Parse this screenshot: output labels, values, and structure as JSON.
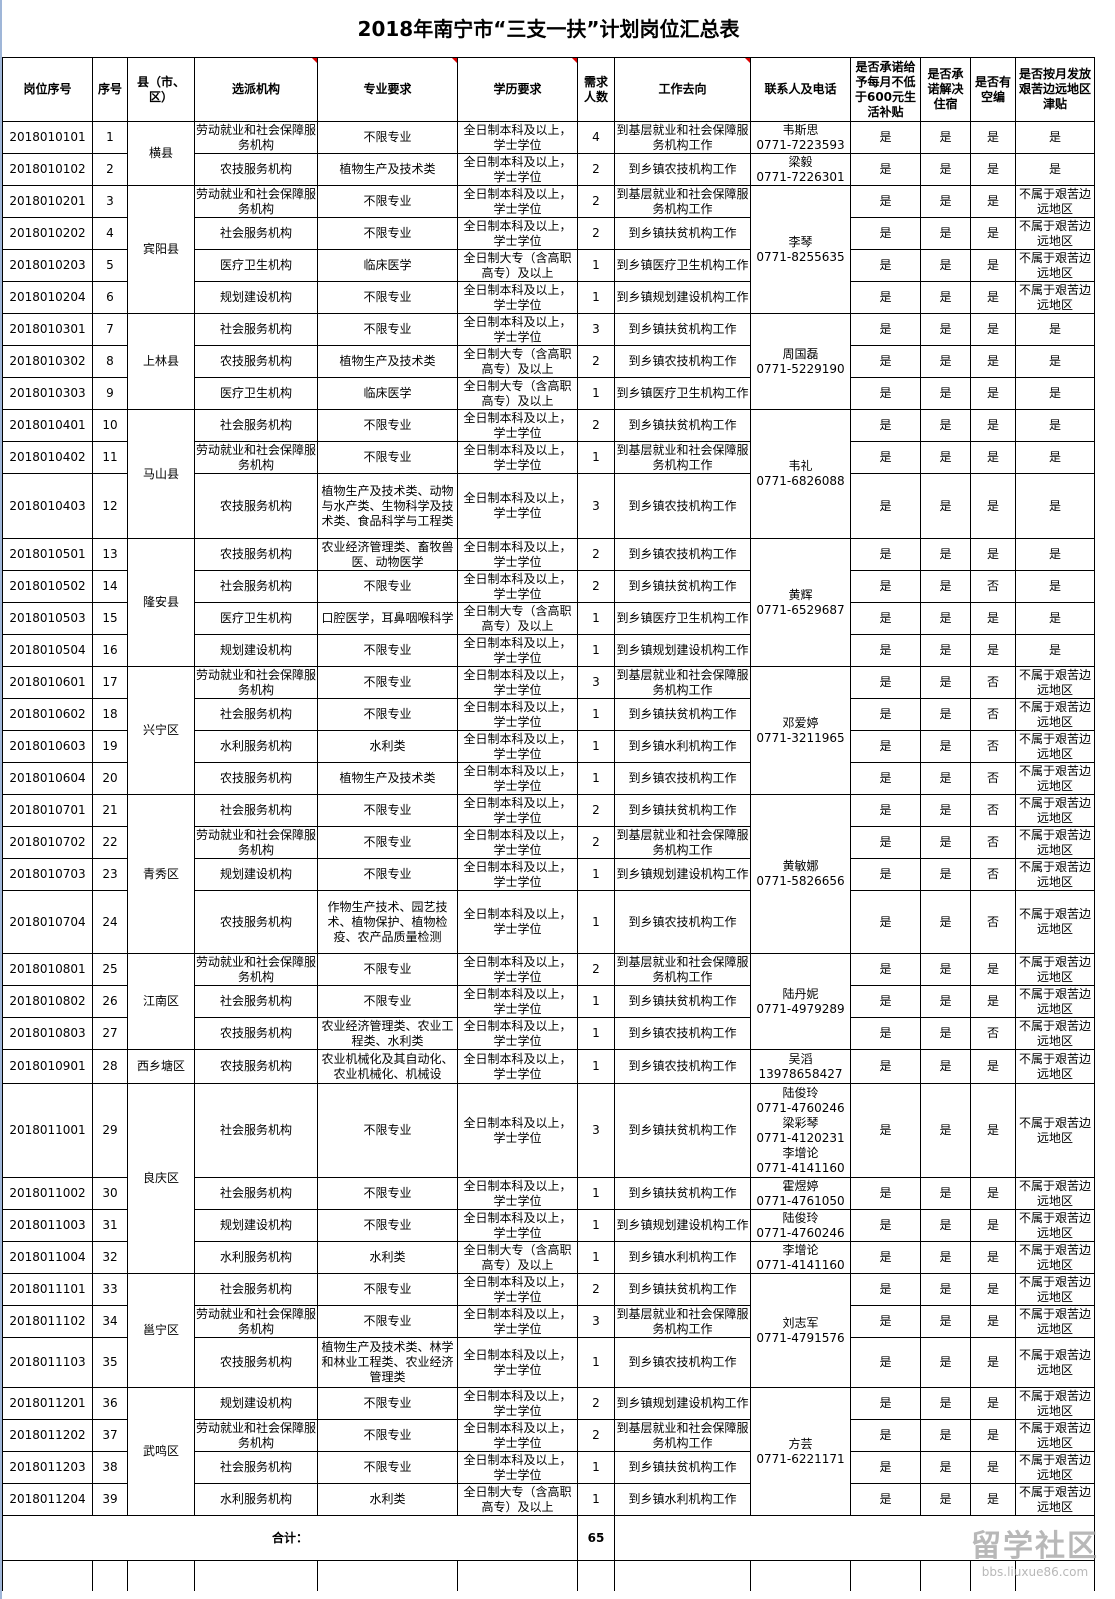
{
  "title": "2018年南宁市“三支一扶”计划岗位汇总表",
  "headers": [
    "岗位序号",
    "序号",
    "县（市、区）",
    "选派机构",
    "专业要求",
    "学历要求",
    "需求人数",
    "工作去向",
    "联系人及电话",
    "是否承诺给予每月不低于600元生活补贴",
    "是否承诺解决住宿",
    "是否有空编",
    "是否按月发放艰苦边远地区津贴"
  ],
  "counties": [
    {
      "name": "横县",
      "contact": null,
      "rows": [
        {
          "id": "2018010101",
          "seq": "1",
          "org": "劳动就业和社会保障服务机构",
          "major": "不限专业",
          "edu": "全日制本科及以上，学士学位",
          "count": "4",
          "dest": "到基层就业和社会保障服务机构工作",
          "contact": "韦斯思\n0771-7223593",
          "flags": [
            "是",
            "是",
            "是",
            "是"
          ]
        },
        {
          "id": "2018010102",
          "seq": "2",
          "org": "农技服务机构",
          "major": "植物生产及技术类",
          "edu": "全日制本科及以上，学士学位",
          "count": "2",
          "dest": "到乡镇农技机构工作",
          "contact": "梁毅\n0771-7226301",
          "flags": [
            "是",
            "是",
            "是",
            "是"
          ]
        }
      ]
    },
    {
      "name": "宾阳县",
      "contact": "李琴\n0771-8255635",
      "rows": [
        {
          "id": "2018010201",
          "seq": "3",
          "org": "劳动就业和社会保障服务机构",
          "major": "不限专业",
          "edu": "全日制本科及以上，学士学位",
          "count": "2",
          "dest": "到基层就业和社会保障服务机构工作",
          "flags": [
            "是",
            "是",
            "是",
            "不属于艰苦边远地区"
          ]
        },
        {
          "id": "2018010202",
          "seq": "4",
          "org": "社会服务机构",
          "major": "不限专业",
          "edu": "全日制本科及以上，学士学位",
          "count": "2",
          "dest": "到乡镇扶贫机构工作",
          "flags": [
            "是",
            "是",
            "是",
            "不属于艰苦边远地区"
          ]
        },
        {
          "id": "2018010203",
          "seq": "5",
          "org": "医疗卫生机构",
          "major": "临床医学",
          "edu": "全日制大专（含高职高专）及以上",
          "count": "1",
          "dest": "到乡镇医疗卫生机构工作",
          "flags": [
            "是",
            "是",
            "是",
            "不属于艰苦边远地区"
          ]
        },
        {
          "id": "2018010204",
          "seq": "6",
          "org": "规划建设机构",
          "major": "不限专业",
          "edu": "全日制本科及以上，学士学位",
          "count": "1",
          "dest": "到乡镇规划建设机构工作",
          "flags": [
            "是",
            "是",
            "是",
            "不属于艰苦边远地区"
          ]
        }
      ]
    },
    {
      "name": "上林县",
      "contact": "周国磊\n0771-5229190",
      "rows": [
        {
          "id": "2018010301",
          "seq": "7",
          "org": "社会服务机构",
          "major": "不限专业",
          "edu": "全日制本科及以上，学士学位",
          "count": "3",
          "dest": "到乡镇扶贫机构工作",
          "flags": [
            "是",
            "是",
            "是",
            "是"
          ]
        },
        {
          "id": "2018010302",
          "seq": "8",
          "org": "农技服务机构",
          "major": "植物生产及技术类",
          "edu": "全日制大专（含高职高专）及以上",
          "count": "2",
          "dest": "到乡镇农技机构工作",
          "flags": [
            "是",
            "是",
            "是",
            "是"
          ]
        },
        {
          "id": "2018010303",
          "seq": "9",
          "org": "医疗卫生机构",
          "major": "临床医学",
          "edu": "全日制大专（含高职高专）及以上",
          "count": "1",
          "dest": "到乡镇医疗卫生机构工作",
          "flags": [
            "是",
            "是",
            "是",
            "是"
          ]
        }
      ]
    },
    {
      "name": "马山县",
      "contact": "韦礼\n0771-6826088",
      "rows": [
        {
          "id": "2018010401",
          "seq": "10",
          "org": "社会服务机构",
          "major": "不限专业",
          "edu": "全日制本科及以上，学士学位",
          "count": "2",
          "dest": "到乡镇扶贫机构工作",
          "flags": [
            "是",
            "是",
            "是",
            "是"
          ]
        },
        {
          "id": "2018010402",
          "seq": "11",
          "org": "劳动就业和社会保障服务机构",
          "major": "不限专业",
          "edu": "全日制本科及以上，学士学位",
          "count": "1",
          "dest": "到基层就业和社会保障服务机构工作",
          "flags": [
            "是",
            "是",
            "是",
            "是"
          ]
        },
        {
          "id": "2018010403",
          "seq": "12",
          "org": "农技服务机构",
          "major": "植物生产及技术类、动物与水产类、生物科学及技术类、食品科学与工程类",
          "edu": "全日制本科及以上，学士学位",
          "count": "3",
          "dest": "到乡镇农技机构工作",
          "flags": [
            "是",
            "是",
            "是",
            "是"
          ]
        }
      ]
    },
    {
      "name": "隆安县",
      "contact": "黄辉\n0771-6529687",
      "rows": [
        {
          "id": "2018010501",
          "seq": "13",
          "org": "农技服务机构",
          "major": "农业经济管理类、畜牧兽医、动物医学",
          "edu": "全日制本科及以上，学士学位",
          "count": "2",
          "dest": "到乡镇农技机构工作",
          "flags": [
            "是",
            "是",
            "是",
            "是"
          ]
        },
        {
          "id": "2018010502",
          "seq": "14",
          "org": "社会服务机构",
          "major": "不限专业",
          "edu": "全日制本科及以上，学士学位",
          "count": "2",
          "dest": "到乡镇扶贫机构工作",
          "flags": [
            "是",
            "是",
            "否",
            "是"
          ]
        },
        {
          "id": "2018010503",
          "seq": "15",
          "org": "医疗卫生机构",
          "major": "口腔医学，耳鼻咽喉科学",
          "edu": "全日制大专（含高职高专）及以上",
          "count": "1",
          "dest": "到乡镇医疗卫生机构工作",
          "flags": [
            "是",
            "是",
            "是",
            "是"
          ]
        },
        {
          "id": "2018010504",
          "seq": "16",
          "org": "规划建设机构",
          "major": "不限专业",
          "edu": "全日制本科及以上，学士学位",
          "count": "1",
          "dest": "到乡镇规划建设机构工作",
          "flags": [
            "是",
            "是",
            "是",
            "是"
          ]
        }
      ]
    },
    {
      "name": "兴宁区",
      "contact": "邓爱婷\n0771-3211965",
      "rows": [
        {
          "id": "2018010601",
          "seq": "17",
          "org": "劳动就业和社会保障服务机构",
          "major": "不限专业",
          "edu": "全日制本科及以上，学士学位",
          "count": "3",
          "dest": "到基层就业和社会保障服务机构工作",
          "flags": [
            "是",
            "是",
            "否",
            "不属于艰苦边远地区"
          ]
        },
        {
          "id": "2018010602",
          "seq": "18",
          "org": "社会服务机构",
          "major": "不限专业",
          "edu": "全日制本科及以上，学士学位",
          "count": "1",
          "dest": "到乡镇扶贫机构工作",
          "flags": [
            "是",
            "是",
            "否",
            "不属于艰苦边远地区"
          ]
        },
        {
          "id": "2018010603",
          "seq": "19",
          "org": "水利服务机构",
          "major": "水利类",
          "edu": "全日制本科及以上，学士学位",
          "count": "1",
          "dest": "到乡镇水利机构工作",
          "flags": [
            "是",
            "是",
            "否",
            "不属于艰苦边远地区"
          ]
        },
        {
          "id": "2018010604",
          "seq": "20",
          "org": "农技服务机构",
          "major": "植物生产及技术类",
          "edu": "全日制本科及以上，学士学位",
          "count": "1",
          "dest": "到乡镇农技机构工作",
          "flags": [
            "是",
            "是",
            "否",
            "不属于艰苦边远地区"
          ]
        }
      ]
    },
    {
      "name": "青秀区",
      "contact": "黄敏娜\n0771-5826656",
      "rows": [
        {
          "id": "2018010701",
          "seq": "21",
          "org": "社会服务机构",
          "major": "不限专业",
          "edu": "全日制本科及以上，学士学位",
          "count": "2",
          "dest": "到乡镇扶贫机构工作",
          "flags": [
            "是",
            "是",
            "否",
            "不属于艰苦边远地区"
          ]
        },
        {
          "id": "2018010702",
          "seq": "22",
          "org": "劳动就业和社会保障服务机构",
          "major": "不限专业",
          "edu": "全日制本科及以上，学士学位",
          "count": "2",
          "dest": "到基层就业和社会保障服务机构工作",
          "flags": [
            "是",
            "是",
            "否",
            "不属于艰苦边远地区"
          ]
        },
        {
          "id": "2018010703",
          "seq": "23",
          "org": "规划建设机构",
          "major": "不限专业",
          "edu": "全日制本科及以上，学士学位",
          "count": "1",
          "dest": "到乡镇规划建设机构工作",
          "flags": [
            "是",
            "是",
            "否",
            "不属于艰苦边远地区"
          ]
        },
        {
          "id": "2018010704",
          "seq": "24",
          "org": "农技服务机构",
          "major": "作物生产技术、园艺技术、植物保护、植物检疫、农产品质量检测",
          "edu": "全日制本科及以上，学士学位",
          "count": "1",
          "dest": "到乡镇农技机构工作",
          "flags": [
            "是",
            "是",
            "否",
            "不属于艰苦边远地区"
          ]
        }
      ]
    },
    {
      "name": "江南区",
      "contact": "陆丹妮\n0771-4979289",
      "rows": [
        {
          "id": "2018010801",
          "seq": "25",
          "org": "劳动就业和社会保障服务机构",
          "major": "不限专业",
          "edu": "全日制本科及以上，学士学位",
          "count": "2",
          "dest": "到基层就业和社会保障服务机构工作",
          "flags": [
            "是",
            "是",
            "是",
            "不属于艰苦边远地区"
          ]
        },
        {
          "id": "2018010802",
          "seq": "26",
          "org": "社会服务机构",
          "major": "不限专业",
          "edu": "全日制本科及以上，学士学位",
          "count": "1",
          "dest": "到乡镇扶贫机构工作",
          "flags": [
            "是",
            "是",
            "是",
            "不属于艰苦边远地区"
          ]
        },
        {
          "id": "2018010803",
          "seq": "27",
          "org": "农技服务机构",
          "major": "农业经济管理类、农业工程类、水利类",
          "edu": "全日制本科及以上，学士学位",
          "count": "1",
          "dest": "到乡镇农技机构工作",
          "flags": [
            "是",
            "是",
            "否",
            "不属于艰苦边远地区"
          ]
        }
      ]
    },
    {
      "name": "西乡塘区",
      "contact": "吴滔\n13978658427",
      "rows": [
        {
          "id": "2018010901",
          "seq": "28",
          "org": "农技服务机构",
          "major": "农业机械化及其自动化、农业机械化、机械设",
          "edu": "全日制本科及以上，学士学位",
          "count": "1",
          "dest": "到乡镇农技机构工作",
          "flags": [
            "是",
            "是",
            "是",
            "不属于艰苦边远地区"
          ]
        }
      ]
    },
    {
      "name": "良庆区",
      "contact": null,
      "rows": [
        {
          "id": "2018011001",
          "seq": "29",
          "org": "社会服务机构",
          "major": "不限专业",
          "edu": "全日制本科及以上，学士学位",
          "count": "3",
          "dest": "到乡镇扶贫机构工作",
          "contact": "陆俊玲\n0771-4760246\n梁彩琴\n0771-4120231\n李增论\n0771-4141160",
          "flags": [
            "是",
            "是",
            "是",
            "不属于艰苦边远地区"
          ]
        },
        {
          "id": "2018011002",
          "seq": "30",
          "org": "社会服务机构",
          "major": "不限专业",
          "edu": "全日制本科及以上，学士学位",
          "count": "1",
          "dest": "到乡镇扶贫机构工作",
          "contact": "霍煜婷\n0771-4761050",
          "flags": [
            "是",
            "是",
            "是",
            "不属于艰苦边远地区"
          ]
        },
        {
          "id": "2018011003",
          "seq": "31",
          "org": "规划建设机构",
          "major": "不限专业",
          "edu": "全日制本科及以上，学士学位",
          "count": "1",
          "dest": "到乡镇规划建设机构工作",
          "contact": "陆俊玲\n0771-4760246",
          "flags": [
            "是",
            "是",
            "是",
            "不属于艰苦边远地区"
          ]
        },
        {
          "id": "2018011004",
          "seq": "32",
          "org": "水利服务机构",
          "major": "水利类",
          "edu": "全日制大专（含高职高专）及以上",
          "count": "1",
          "dest": "到乡镇水利机构工作",
          "contact": "李增论\n0771-4141160",
          "flags": [
            "是",
            "是",
            "是",
            "不属于艰苦边远地区"
          ]
        }
      ]
    },
    {
      "name": "邕宁区",
      "contact": "刘志军\n0771-4791576",
      "rows": [
        {
          "id": "2018011101",
          "seq": "33",
          "org": "社会服务机构",
          "major": "不限专业",
          "edu": "全日制本科及以上，学士学位",
          "count": "2",
          "dest": "到乡镇扶贫机构工作",
          "flags": [
            "是",
            "是",
            "是",
            "不属于艰苦边远地区"
          ]
        },
        {
          "id": "2018011102",
          "seq": "34",
          "org": "劳动就业和社会保障服务机构",
          "major": "不限专业",
          "edu": "全日制本科及以上，学士学位",
          "count": "3",
          "dest": "到基层就业和社会保障服务机构工作",
          "flags": [
            "是",
            "是",
            "是",
            "不属于艰苦边远地区"
          ]
        },
        {
          "id": "2018011103",
          "seq": "35",
          "org": "农技服务机构",
          "major": "植物生产及技术类、林学和林业工程类、农业经济管理类",
          "edu": "全日制本科及以上，学士学位",
          "count": "1",
          "dest": "到乡镇农技机构工作",
          "flags": [
            "是",
            "是",
            "是",
            "不属于艰苦边远地区"
          ]
        }
      ]
    },
    {
      "name": "武鸣区",
      "contact": "方芸\n0771-6221171",
      "rows": [
        {
          "id": "2018011201",
          "seq": "36",
          "org": "规划建设机构",
          "major": "不限专业",
          "edu": "全日制本科及以上，学士学位",
          "count": "2",
          "dest": "到乡镇规划建设机构工作",
          "flags": [
            "是",
            "是",
            "是",
            "不属于艰苦边远地区"
          ]
        },
        {
          "id": "2018011202",
          "seq": "37",
          "org": "劳动就业和社会保障服务机构",
          "major": "不限专业",
          "edu": "全日制本科及以上，学士学位",
          "count": "2",
          "dest": "到基层就业和社会保障服务机构工作",
          "flags": [
            "是",
            "是",
            "是",
            "不属于艰苦边远地区"
          ]
        },
        {
          "id": "2018011203",
          "seq": "38",
          "org": "社会服务机构",
          "major": "不限专业",
          "edu": "全日制本科及以上，学士学位",
          "count": "1",
          "dest": "到乡镇扶贫机构工作",
          "flags": [
            "是",
            "是",
            "是",
            "不属于艰苦边远地区"
          ]
        },
        {
          "id": "2018011204",
          "seq": "39",
          "org": "水利服务机构",
          "major": "水利类",
          "edu": "全日制大专（含高职高专）及以上",
          "count": "1",
          "dest": "到乡镇水利机构工作",
          "flags": [
            "是",
            "是",
            "是",
            "不属于艰苦边远地区"
          ]
        }
      ]
    }
  ],
  "total": {
    "label": "合计：",
    "value": "65"
  },
  "watermark": {
    "logo_text": "留学社区",
    "url_text": "bbs.liuxue86.com"
  },
  "colors": {
    "comment_marker": "#dd0000",
    "grid": "#000000"
  }
}
